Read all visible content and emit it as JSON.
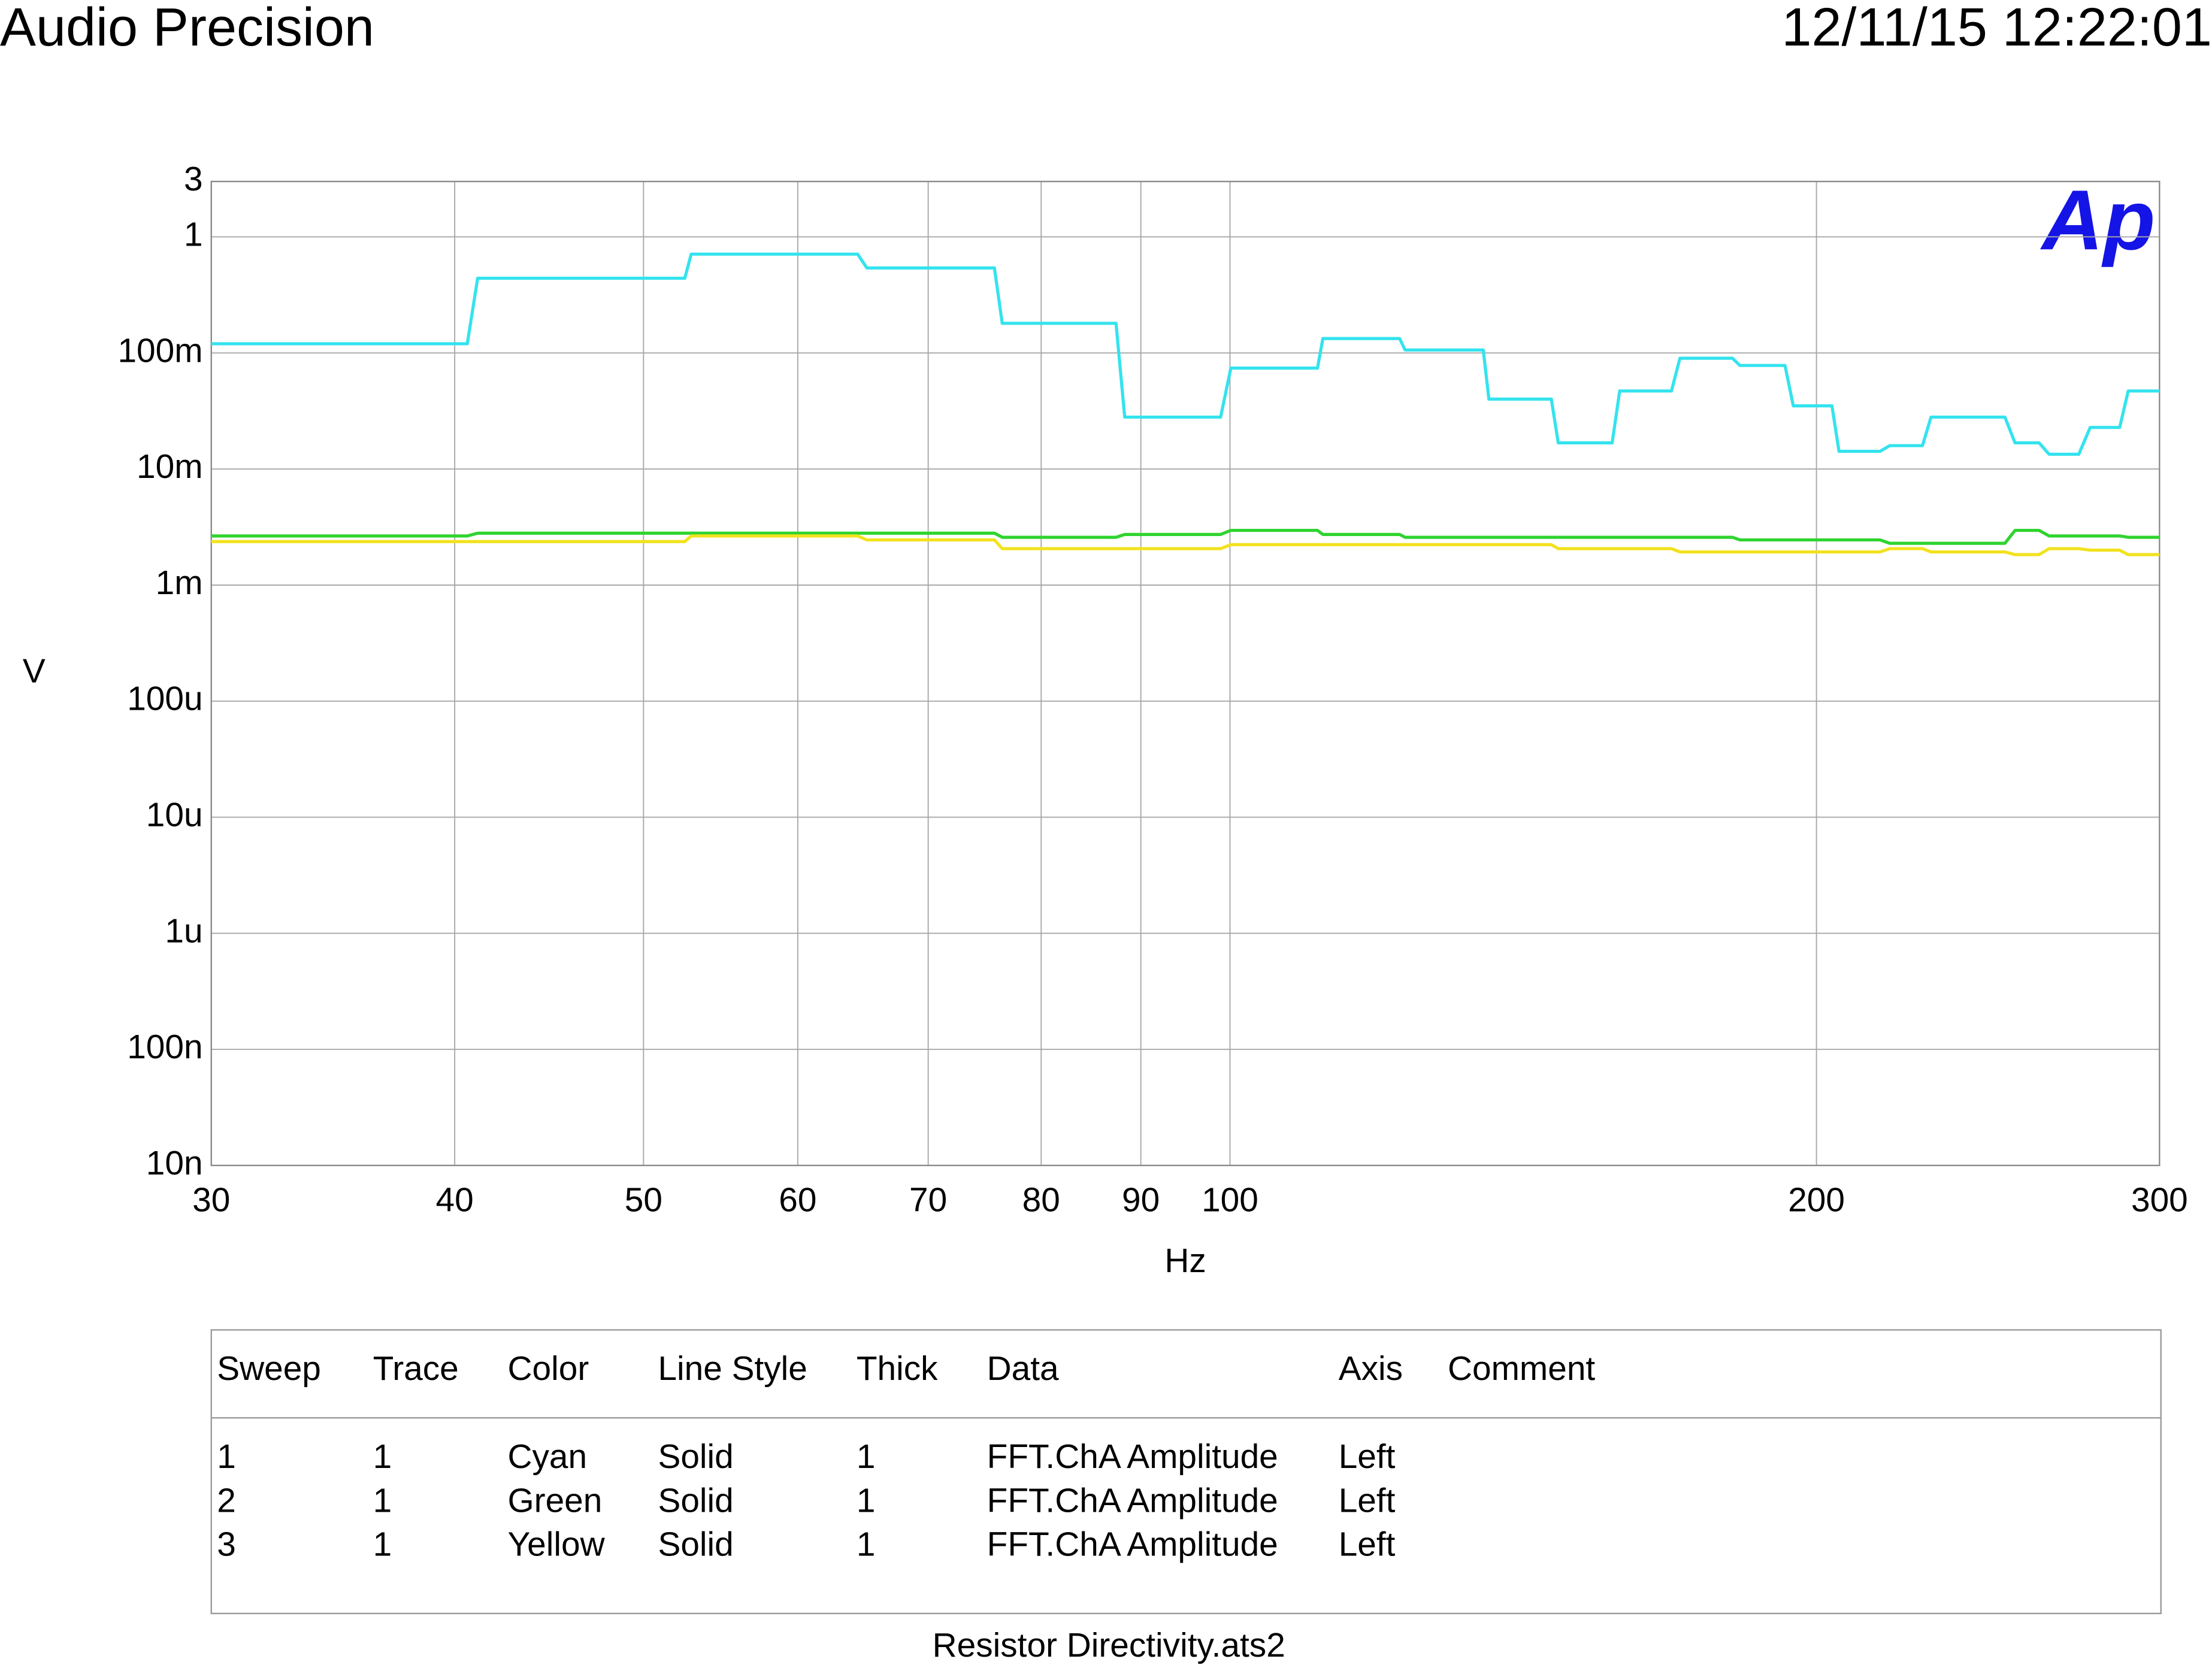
{
  "header": {
    "title": "Audio Precision",
    "timestamp": "12/11/15 12:22:01"
  },
  "logo": "Ap",
  "chart_data": {
    "type": "line",
    "xlabel": "Hz",
    "ylabel": "V",
    "xscale": "log",
    "yscale": "log",
    "grid": true,
    "xlim": [
      30,
      300
    ],
    "ylim": [
      1e-08,
      3
    ],
    "xticks": [
      30,
      40,
      50,
      60,
      70,
      80,
      90,
      100,
      200,
      300
    ],
    "yticks": [
      3,
      1,
      {
        "value": 0.1,
        "label": "100m"
      },
      {
        "value": 0.01,
        "label": "10m"
      },
      {
        "value": 0.001,
        "label": "1m"
      },
      {
        "value": 0.0001,
        "label": "100u"
      },
      {
        "value": 1e-05,
        "label": "10u"
      },
      {
        "value": 1e-06,
        "label": "1u"
      },
      {
        "value": 1e-07,
        "label": "100n"
      },
      {
        "value": 1e-08,
        "label": "10n"
      }
    ],
    "x": [
      30,
      40.6,
      41.1,
      52.5,
      52.9,
      64.4,
      65.1,
      75.7,
      76.4,
      87.4,
      88.3,
      98.9,
      100.1,
      110.9,
      111.6,
      122.2,
      123.0,
      134.9,
      135.8,
      146.2,
      147.4,
      157.1,
      158.5,
      168.5,
      170.2,
      181.1,
      182.7,
      192.7,
      194.6,
      203.7,
      205.4,
      215.6,
      218.1,
      226.7,
      229.0,
      249.9,
      252.9,
      260.2,
      263.3,
      272.7,
      276.4,
      286.2,
      289.1,
      300
    ],
    "series": [
      {
        "color": "#33e3ee",
        "values": [
          0.12,
          0.12,
          0.44,
          0.44,
          0.71,
          0.71,
          0.54,
          0.54,
          0.18,
          0.18,
          0.028,
          0.028,
          0.074,
          0.074,
          0.133,
          0.133,
          0.106,
          0.106,
          0.04,
          0.04,
          0.0168,
          0.0168,
          0.047,
          0.047,
          0.09,
          0.09,
          0.078,
          0.078,
          0.035,
          0.035,
          0.0142,
          0.0142,
          0.0159,
          0.0159,
          0.028,
          0.028,
          0.0168,
          0.0168,
          0.0134,
          0.0134,
          0.0228,
          0.0228,
          0.047,
          0.047
        ]
      },
      {
        "color": "#2fd42f",
        "values": [
          0.00265,
          0.00265,
          0.0028,
          0.0028,
          0.0028,
          0.0028,
          0.0028,
          0.0028,
          0.00258,
          0.00258,
          0.00273,
          0.00273,
          0.00296,
          0.00296,
          0.00273,
          0.00273,
          0.00258,
          0.00258,
          0.00258,
          0.00258,
          0.00258,
          0.00258,
          0.00258,
          0.00258,
          0.00258,
          0.00258,
          0.00245,
          0.00245,
          0.00245,
          0.00245,
          0.00245,
          0.00245,
          0.00229,
          0.00229,
          0.00229,
          0.00229,
          0.00296,
          0.00296,
          0.00265,
          0.00265,
          0.00265,
          0.00265,
          0.00258,
          0.00258
        ]
      },
      {
        "color": "#f2e21e",
        "values": [
          0.00237,
          0.00237,
          0.00237,
          0.00237,
          0.00265,
          0.00265,
          0.00245,
          0.00245,
          0.00206,
          0.00206,
          0.00206,
          0.00206,
          0.00223,
          0.00223,
          0.00223,
          0.00223,
          0.00223,
          0.00223,
          0.00223,
          0.00223,
          0.00206,
          0.00206,
          0.00206,
          0.00206,
          0.00193,
          0.00193,
          0.00193,
          0.00193,
          0.00193,
          0.00193,
          0.00193,
          0.00193,
          0.00206,
          0.00206,
          0.00193,
          0.00193,
          0.00183,
          0.00183,
          0.00206,
          0.00206,
          0.002,
          0.002,
          0.00183,
          0.00183
        ]
      }
    ]
  },
  "legend_table": {
    "columns": [
      "Sweep",
      "Trace",
      "Color",
      "Line Style",
      "Thick",
      "Data",
      "Axis",
      "Comment"
    ],
    "rows": [
      [
        "1",
        "1",
        "Cyan",
        "Solid",
        "1",
        "FFT.ChA Amplitude",
        "Left"
      ],
      [
        "2",
        "1",
        "Green",
        "Solid",
        "1",
        "FFT.ChA Amplitude",
        "Left"
      ],
      [
        "3",
        "1",
        "Yellow",
        "Solid",
        "1",
        "FFT.ChA Amplitude",
        "Left"
      ]
    ]
  },
  "footer": "Resistor Directivity.ats2"
}
